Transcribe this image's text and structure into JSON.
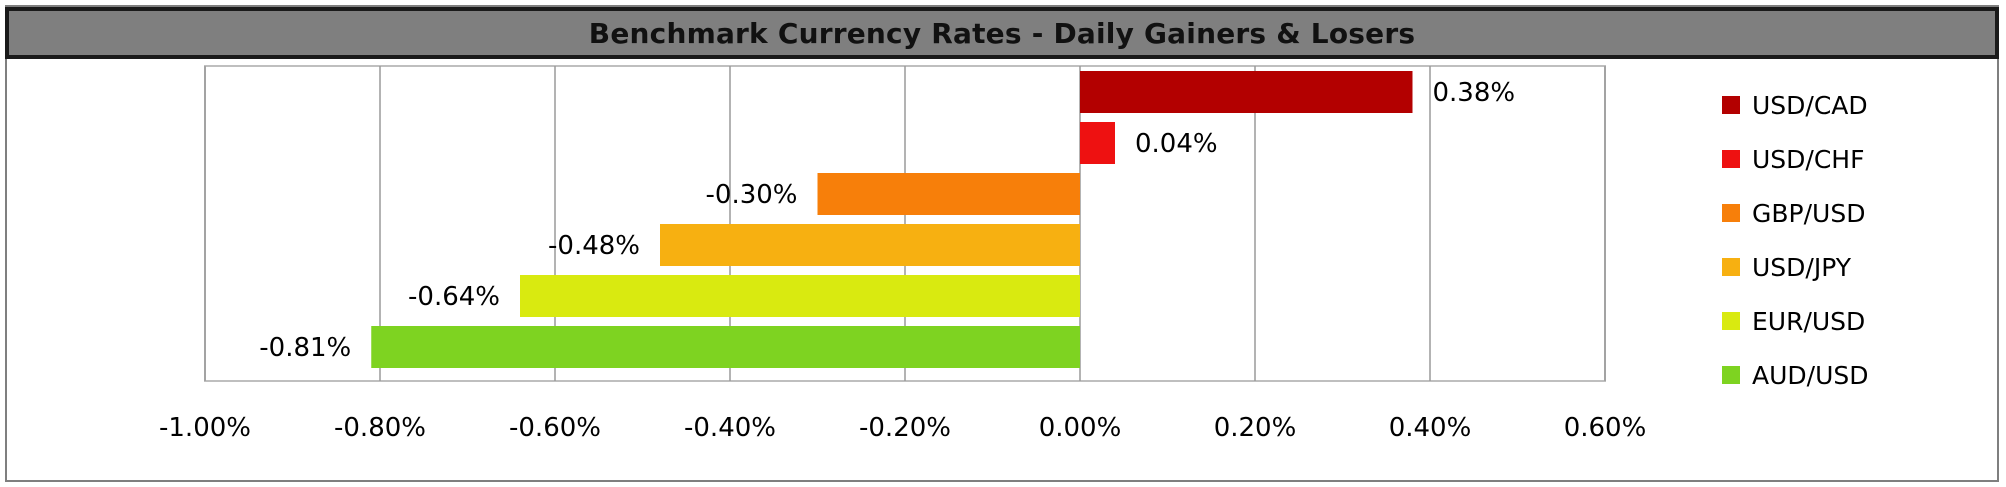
{
  "chart_data": {
    "type": "bar",
    "orientation": "horizontal",
    "title": "Benchmark Currency Rates - Daily Gainers & Losers",
    "categories": [
      "USD/CAD",
      "USD/CHF",
      "GBP/USD",
      "USD/JPY",
      "EUR/USD",
      "AUD/USD"
    ],
    "values": [
      0.38,
      0.04,
      -0.3,
      -0.48,
      -0.64,
      -0.81
    ],
    "data_labels": [
      "0.38%",
      "0.04%",
      "-0.30%",
      "-0.48%",
      "-0.64%",
      "-0.81%"
    ],
    "colors": [
      "#b30000",
      "#ee1111",
      "#f77f0a",
      "#f7b011",
      "#d9ea10",
      "#7ed321"
    ],
    "xlim": [
      -1.0,
      0.6
    ],
    "x_ticks": [
      -1.0,
      -0.8,
      -0.6,
      -0.4,
      -0.2,
      0.0,
      0.2,
      0.4,
      0.6
    ],
    "x_tick_labels": [
      "-1.00%",
      "-0.80%",
      "-0.60%",
      "-0.40%",
      "-0.20%",
      "0.00%",
      "0.20%",
      "0.40%",
      "0.60%"
    ],
    "grid": true,
    "legend_position": "right",
    "xlabel": "",
    "ylabel": ""
  }
}
